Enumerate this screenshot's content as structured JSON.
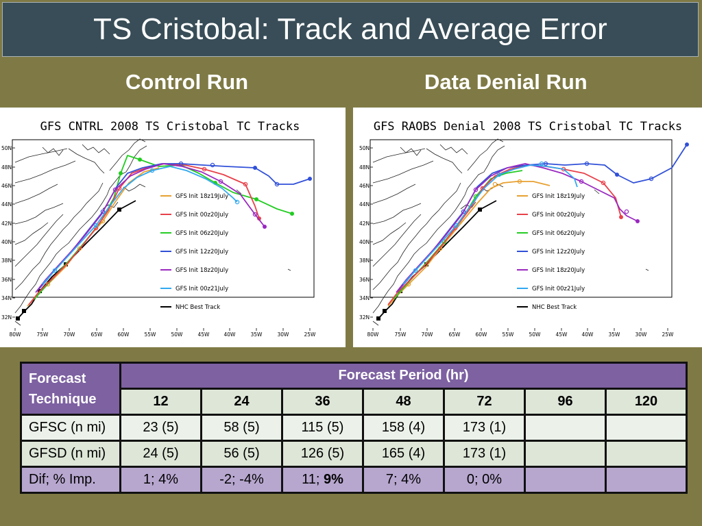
{
  "title": "TS Cristobal: Track and Average Error",
  "left_label": "Control Run",
  "right_label": "Data Denial Run",
  "left_chart": {
    "title": "GFS CNTRL 2008 TS Cristobal TC Tracks",
    "lat_labels": [
      "50N",
      "48N",
      "46N",
      "44N",
      "42N",
      "40N",
      "38N",
      "36N",
      "34N",
      "32N"
    ],
    "lon_labels": [
      "80W",
      "75W",
      "70W",
      "65W",
      "60W",
      "55W",
      "50W",
      "45W",
      "40W",
      "35W",
      "30W",
      "25W"
    ],
    "legend": [
      "GFS Init 18z19July",
      "GFS Init 00z20July",
      "GFS Init 06z20July",
      "GFS Init 12z20July",
      "GFS Init 18z20July",
      "GFS Init 00z21July",
      "NHC Best Track"
    ]
  },
  "right_chart": {
    "title": "GFS RAOBS Denial 2008 TS Cristobal TC Tracks",
    "lat_labels": [
      "50N",
      "48N",
      "46N",
      "44N",
      "42N",
      "40N",
      "38N",
      "36N",
      "34N",
      "32N"
    ],
    "lon_labels": [
      "80W",
      "75W",
      "70W",
      "65W",
      "60W",
      "55W",
      "50W",
      "45W",
      "40W",
      "35W",
      "30W",
      "25W"
    ],
    "legend": [
      "GFS Init 18z19July",
      "GFS Init 00z20July",
      "GFS Init 06z20July",
      "GFS Init 12z20July",
      "GFS Init 18z20July",
      "GFS Init 00z21July",
      "NHC Best Track"
    ]
  },
  "colors": {
    "orange": "#e8a030",
    "red": "#e8404a",
    "green": "#22cc22",
    "blue": "#3050d8",
    "purple": "#9a28c0",
    "cyan": "#30a8f0",
    "black": "#000000"
  },
  "table": {
    "technique_header": "Forecast Technique",
    "period_header": "Forecast Period (hr)",
    "periods": [
      "12",
      "24",
      "36",
      "48",
      "72",
      "96",
      "120"
    ],
    "rows": [
      {
        "label": "GFSC (n mi)",
        "values": [
          "23 (5)",
          "58 (5)",
          "115 (5)",
          "158 (4)",
          "173 (1)",
          "",
          ""
        ]
      },
      {
        "label": "GFSD (n mi)",
        "values": [
          "24 (5)",
          "56 (5)",
          "126 (5)",
          "165 (4)",
          "173 (1)",
          "",
          ""
        ]
      },
      {
        "label": "Dif; % Imp.",
        "values": [
          "1;  4%",
          "-2; -4%",
          "11; ",
          "7; 4%",
          "0; 0%",
          "",
          ""
        ],
        "bold_suffix": "9%"
      }
    ]
  }
}
